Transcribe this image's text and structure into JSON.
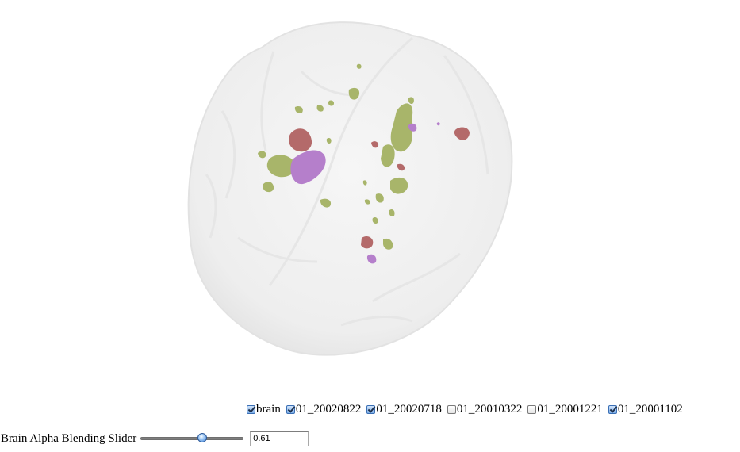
{
  "viewer": {
    "structures": [
      {
        "name": "brain",
        "color": "#f1f1f1"
      },
      {
        "name": "lesions-green",
        "color": "#a8b56a"
      },
      {
        "name": "lesions-red",
        "color": "#b46a6a"
      },
      {
        "name": "lesions-purple",
        "color": "#b57fcb"
      }
    ]
  },
  "layers": [
    {
      "label": "brain",
      "checked": true
    },
    {
      "label": "01_20020822",
      "checked": true
    },
    {
      "label": "01_20020718",
      "checked": true
    },
    {
      "label": "01_20010322",
      "checked": false
    },
    {
      "label": "01_20001221",
      "checked": false
    },
    {
      "label": "01_20001102",
      "checked": true
    }
  ],
  "slider": {
    "label": "Brain Alpha Blending Slider",
    "value": 0.61,
    "value_text": "0.61",
    "min": 0,
    "max": 1
  }
}
